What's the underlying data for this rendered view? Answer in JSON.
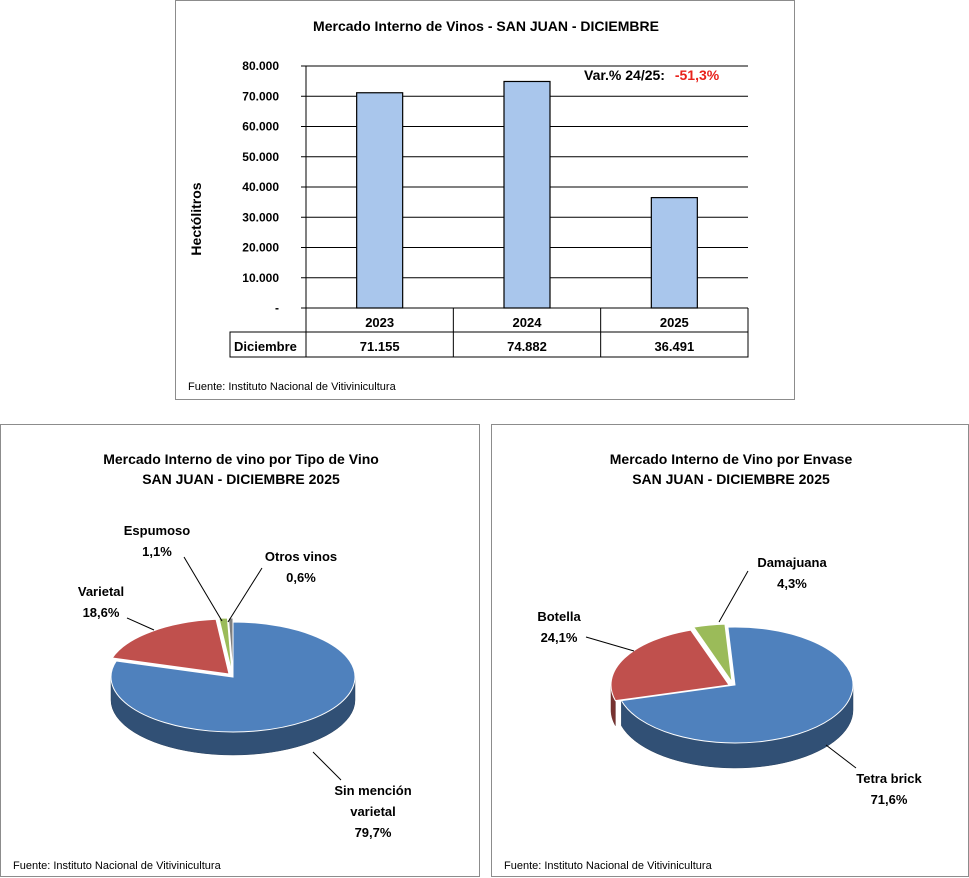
{
  "chart_data": [
    {
      "type": "bar",
      "title": "Mercado Interno de Vinos - SAN JUAN  -  DICIEMBRE",
      "ylabel": "Hectólitros",
      "categories": [
        "2023",
        "2024",
        "2025"
      ],
      "series": [
        {
          "name": "Diciembre",
          "values": [
            71155,
            74882,
            36491
          ]
        }
      ],
      "table_values": [
        "71.155",
        "74.882",
        "36.491"
      ],
      "yticks": [
        "-",
        "10.000",
        "20.000",
        "30.000",
        "40.000",
        "50.000",
        "60.000",
        "70.000",
        "80.000"
      ],
      "ylim": [
        0,
        80000
      ],
      "grid": true,
      "annotation": {
        "label": "Var.% 24/25:",
        "value": "-51,3%"
      },
      "source": "Fuente: Instituto Nacional de Vitivinicultura",
      "colors": {
        "bar": "#a9c6ec",
        "annotation_value": "#e8221c"
      }
    },
    {
      "type": "pie",
      "title": "Mercado Interno de vino por Tipo de Vino",
      "subtitle": "SAN JUAN -  DICIEMBRE 2025",
      "slices": [
        {
          "name": "Sin mención varietal",
          "label_lines": [
            "Sin mención",
            "varietal"
          ],
          "value": 79.7,
          "label": "79,7%",
          "color": "#4f81bd"
        },
        {
          "name": "Varietal",
          "label_lines": [
            "Varietal"
          ],
          "value": 18.6,
          "label": "18,6%",
          "color": "#c0504d"
        },
        {
          "name": "Espumoso",
          "label_lines": [
            "Espumoso"
          ],
          "value": 1.1,
          "label": "1,1%",
          "color": "#9bbb59"
        },
        {
          "name": "Otros vinos",
          "label_lines": [
            "Otros vinos"
          ],
          "value": 0.6,
          "label": "0,6%",
          "color": "#7f7f7f"
        }
      ],
      "source": "Fuente: Instituto Nacional de Vitivinicultura"
    },
    {
      "type": "pie",
      "title": "Mercado Interno de Vino por Envase",
      "subtitle": "SAN JUAN - DICIEMBRE 2025",
      "slices": [
        {
          "name": "Tetra brick",
          "label_lines": [
            "Tetra brick"
          ],
          "value": 71.6,
          "label": "71,6%",
          "color": "#4f81bd"
        },
        {
          "name": "Botella",
          "label_lines": [
            "Botella"
          ],
          "value": 24.1,
          "label": "24,1%",
          "color": "#c0504d"
        },
        {
          "name": "Damajuana",
          "label_lines": [
            "Damajuana"
          ],
          "value": 4.3,
          "label": "4,3%",
          "color": "#9bbb59"
        }
      ],
      "source": "Fuente: Instituto Nacional de Vitivinicultura"
    }
  ]
}
